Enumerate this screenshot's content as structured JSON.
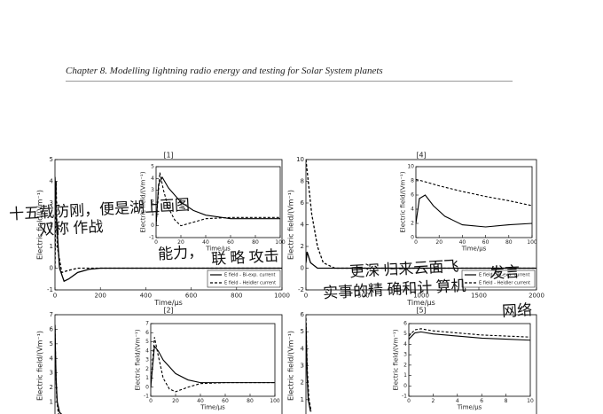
{
  "header": {
    "title": "Chapter 8.  Modelling lightning radio energy and testing for Solar System planets"
  },
  "figure": {
    "panels": [
      {
        "title": "[1]",
        "xlabel": "Time/μs",
        "ylabel": "Electric field/(Vm⁻¹)",
        "xlim": [
          0,
          1000
        ],
        "ylim": [
          -1,
          5
        ],
        "xticks": [
          0,
          200,
          400,
          600,
          800,
          1000
        ],
        "yticks": [
          -1,
          0,
          1,
          2,
          3,
          4,
          5
        ],
        "legend": true,
        "series": [
          {
            "name": "E field - Bi-exp. current",
            "color": "#000000",
            "line_style": "solid",
            "x": [
              0,
              5,
              20,
              40,
              60,
              100,
              150,
              200,
              1000
            ],
            "values": [
              4.2,
              2.5,
              0,
              -0.6,
              -0.5,
              -0.2,
              -0.05,
              0,
              0
            ]
          },
          {
            "name": "E field - Heidler current",
            "color": "#000000",
            "line_style": "dashed",
            "x": [
              0,
              5,
              10,
              30,
              60,
              100,
              1000
            ],
            "values": [
              0,
              4.0,
              1.0,
              -0.2,
              -0.1,
              0,
              0
            ]
          }
        ],
        "inset": {
          "xlabel": "Time/μs",
          "ylabel": "Electric field/(Vm⁻¹)",
          "xlim": [
            0,
            100
          ],
          "ylim": [
            -1,
            5
          ],
          "xticks": [
            0,
            20,
            40,
            60,
            80,
            100
          ],
          "yticks": [
            -1,
            0,
            1,
            2,
            3,
            4,
            5
          ],
          "series": [
            {
              "color": "#000000",
              "line_style": "solid",
              "x": [
                0,
                2,
                5,
                10,
                20,
                30,
                40,
                60,
                80,
                100
              ],
              "values": [
                0,
                3.5,
                4.1,
                3.2,
                2.0,
                1.3,
                0.9,
                0.6,
                0.6,
                0.6
              ]
            },
            {
              "color": "#000000",
              "line_style": "dashed",
              "x": [
                0,
                3,
                6,
                10,
                15,
                20,
                30,
                40,
                60,
                100
              ],
              "values": [
                0,
                4.5,
                3.0,
                1.5,
                0.5,
                0,
                0.3,
                0.6,
                0.7,
                0.7
              ]
            }
          ]
        }
      },
      {
        "title": "[4]",
        "xlabel": "Time/μs",
        "ylabel": "Electric field/(Vm⁻¹)",
        "xlim": [
          0,
          2000
        ],
        "ylim": [
          -2,
          10
        ],
        "xticks": [
          0,
          500,
          1000,
          1500,
          2000
        ],
        "yticks": [
          -2,
          0,
          2,
          4,
          6,
          8,
          10
        ],
        "legend": true,
        "series": [
          {
            "name": "E field - Bi-exp. current",
            "color": "#000000",
            "line_style": "solid",
            "x": [
              0,
              10,
              40,
              100,
              200,
              2000
            ],
            "values": [
              0.5,
              1.5,
              0.5,
              0,
              0,
              0
            ]
          },
          {
            "name": "E field - Heidler current",
            "color": "#000000",
            "line_style": "dashed",
            "x": [
              0,
              20,
              50,
              100,
              150,
              250,
              2000
            ],
            "values": [
              10,
              8,
              5,
              2,
              0.5,
              0,
              0
            ]
          }
        ],
        "inset": {
          "xlabel": "Time/μs",
          "ylabel": "Electric field/(Vm⁻¹)",
          "xlim": [
            0,
            100
          ],
          "ylim": [
            0,
            10
          ],
          "xticks": [
            0,
            20,
            40,
            60,
            80,
            100
          ],
          "yticks": [
            0,
            2,
            4,
            6,
            8,
            10
          ],
          "series": [
            {
              "color": "#000000",
              "line_style": "solid",
              "x": [
                0,
                3,
                8,
                15,
                25,
                40,
                60,
                80,
                100
              ],
              "values": [
                2.0,
                5.5,
                6.0,
                4.5,
                3.0,
                1.8,
                1.5,
                1.8,
                2.0
              ]
            },
            {
              "color": "#000000",
              "line_style": "dashed",
              "x": [
                0,
                5,
                20,
                40,
                60,
                80,
                100
              ],
              "values": [
                8.2,
                8.0,
                7.3,
                6.5,
                5.8,
                5.2,
                4.5
              ]
            }
          ]
        }
      },
      {
        "title": "[2]",
        "xlabel": "Time/μs",
        "ylabel": "Electric field/(Vm⁻¹)",
        "xlim": [
          0,
          1000
        ],
        "ylim": [
          0,
          7
        ],
        "yticks": [
          1,
          2,
          3,
          4,
          5,
          6,
          7
        ],
        "legend": false,
        "series": [
          {
            "color": "#000000",
            "line_style": "solid",
            "x": [
              0,
              2,
              5,
              10,
              20,
              40
            ],
            "values": [
              6.3,
              4.5,
              2.5,
              1.0,
              0.3,
              0
            ]
          },
          {
            "color": "#000000",
            "line_style": "dashed",
            "x": [
              0,
              3,
              8,
              15,
              30
            ],
            "values": [
              6.0,
              3.5,
              1.2,
              0.2,
              0
            ]
          }
        ],
        "inset": {
          "xlabel": "Time/μs",
          "ylabel": "Electric field/(Vm⁻¹)",
          "xlim": [
            0,
            100
          ],
          "ylim": [
            -1,
            7
          ],
          "xticks": [
            0,
            20,
            40,
            60,
            80,
            100
          ],
          "yticks": [
            -1,
            0,
            1,
            2,
            3,
            4,
            5,
            6,
            7
          ],
          "series": [
            {
              "color": "#000000",
              "line_style": "solid",
              "x": [
                0,
                3,
                6,
                10,
                20,
                30,
                40,
                60,
                100
              ],
              "values": [
                0,
                4.5,
                4.0,
                3.0,
                1.5,
                0.8,
                0.5,
                0.5,
                0.5
              ]
            },
            {
              "color": "#000000",
              "line_style": "dashed",
              "x": [
                0,
                3,
                6,
                10,
                15,
                20,
                30,
                40,
                60,
                100
              ],
              "values": [
                0,
                5.5,
                3.5,
                1.0,
                -0.2,
                -0.5,
                0,
                0.4,
                0.5,
                0.5
              ]
            }
          ]
        }
      },
      {
        "title": "[5]",
        "xlabel": "Time/μs",
        "ylabel": "Electric field/(Vm⁻¹)",
        "xlim": [
          0,
          2000
        ],
        "ylim": [
          0,
          6
        ],
        "yticks": [
          1,
          2,
          3,
          4,
          5,
          6
        ],
        "legend": false,
        "series": [
          {
            "color": "#000000",
            "line_style": "solid",
            "x": [
              0,
              5,
              10,
              20,
              40
            ],
            "values": [
              5.5,
              4.0,
              2.5,
              1.0,
              0.3
            ]
          },
          {
            "color": "#000000",
            "line_style": "dashed",
            "x": [
              0,
              5,
              12,
              25,
              45
            ],
            "values": [
              5.8,
              4.3,
              2.7,
              1.1,
              0.3
            ]
          }
        ],
        "inset": {
          "xlabel": "Time/μs",
          "ylabel": "Electric field/(Vm⁻¹)",
          "xlim": [
            0,
            10
          ],
          "ylim": [
            -1,
            6
          ],
          "xticks": [
            0,
            2,
            4,
            6,
            8,
            10
          ],
          "yticks": [
            -1,
            0,
            1,
            2,
            3,
            4,
            5,
            6
          ],
          "series": [
            {
              "color": "#000000",
              "line_style": "solid",
              "x": [
                0,
                0.5,
                1,
                2,
                4,
                6,
                8,
                10
              ],
              "values": [
                4.5,
                5.1,
                5.2,
                5.0,
                4.8,
                4.6,
                4.5,
                4.4
              ]
            },
            {
              "color": "#000000",
              "line_style": "dashed",
              "x": [
                0,
                0.5,
                1,
                2,
                4,
                6,
                8,
                10
              ],
              "values": [
                4.8,
                5.4,
                5.5,
                5.3,
                5.1,
                4.9,
                4.8,
                4.7
              ]
            }
          ]
        }
      }
    ]
  },
  "annotations": [
    "十五载防刚，便是湖上画图",
    "双称 作战",
    "能力，",
    "联 略 攻击",
    "更深 归来云面飞",
    "发言",
    "实事的精 确和计 算机",
    "网络"
  ]
}
